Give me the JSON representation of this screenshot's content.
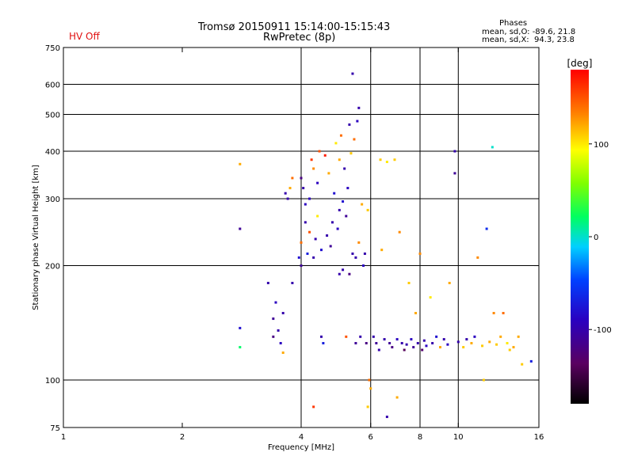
{
  "status": {
    "hv_label": "HV Off",
    "hv_color": "#e01010"
  },
  "header": {
    "title_line1": "Tromsø 20150911 15:14:00-15:15:43",
    "title_line2": "RwPretec (8p)"
  },
  "phase_info": {
    "title": "Phases",
    "o_line": "mean, sd,O: -89.6, 21.8",
    "x_line": "mean, sd,X:  94.3, 23.8"
  },
  "colorbar": {
    "unit_label": "[deg]",
    "min": -180,
    "max": 180,
    "ticks": [
      {
        "value": 100,
        "label": "100"
      },
      {
        "value": 0,
        "label": "0"
      },
      {
        "value": -100,
        "label": "-100"
      }
    ]
  },
  "chart_data": {
    "type": "scatter",
    "xlabel": "Frequency [MHz]",
    "ylabel": "Stationary phase Virtual Height [km]",
    "x_scale": "log",
    "y_scale": "log",
    "xlim": [
      1,
      16
    ],
    "ylim": [
      75,
      750
    ],
    "grid": true,
    "x_ticks": [
      {
        "value": 1,
        "label": "1"
      },
      {
        "value": 2,
        "label": "2"
      },
      {
        "value": 4,
        "label": "4"
      },
      {
        "value": 6,
        "label": "6"
      },
      {
        "value": 8,
        "label": "8"
      },
      {
        "value": 10,
        "label": "10"
      },
      {
        "value": 16,
        "label": "16"
      }
    ],
    "y_ticks": [
      {
        "value": 75,
        "label": "75"
      },
      {
        "value": 100,
        "label": "100"
      },
      {
        "value": 200,
        "label": "200"
      },
      {
        "value": 300,
        "label": "300"
      },
      {
        "value": 400,
        "label": "400"
      },
      {
        "value": 500,
        "label": "500"
      },
      {
        "value": 600,
        "label": "600"
      },
      {
        "value": 750,
        "label": "750"
      }
    ],
    "x_grid": [
      4,
      6,
      8,
      10
    ],
    "y_grid": [
      100,
      200,
      300,
      400,
      500,
      600
    ],
    "points": [
      [
        2.8,
        370,
        120
      ],
      [
        2.8,
        250,
        -110
      ],
      [
        2.8,
        137,
        -80
      ],
      [
        2.8,
        122,
        20
      ],
      [
        3.3,
        180,
        -100
      ],
      [
        3.4,
        145,
        -110
      ],
      [
        3.4,
        130,
        -120
      ],
      [
        3.45,
        160,
        -90
      ],
      [
        3.5,
        135,
        -100
      ],
      [
        3.55,
        125,
        -90
      ],
      [
        3.6,
        118,
        120
      ],
      [
        3.6,
        150,
        -100
      ],
      [
        3.65,
        310,
        -100
      ],
      [
        3.7,
        300,
        -100
      ],
      [
        3.75,
        320,
        120
      ],
      [
        3.8,
        180,
        -100
      ],
      [
        3.8,
        340,
        140
      ],
      [
        3.95,
        210,
        -80
      ],
      [
        4.0,
        200,
        -110
      ],
      [
        4.0,
        230,
        140
      ],
      [
        4.0,
        340,
        -120
      ],
      [
        4.05,
        320,
        -100
      ],
      [
        4.1,
        290,
        -90
      ],
      [
        4.1,
        260,
        -100
      ],
      [
        4.15,
        215,
        -70
      ],
      [
        4.2,
        300,
        -90
      ],
      [
        4.2,
        245,
        150
      ],
      [
        4.25,
        380,
        160
      ],
      [
        4.3,
        360,
        130
      ],
      [
        4.3,
        210,
        -100
      ],
      [
        4.35,
        235,
        -100
      ],
      [
        4.4,
        330,
        -90
      ],
      [
        4.4,
        270,
        100
      ],
      [
        4.45,
        400,
        150
      ],
      [
        4.5,
        220,
        -80
      ],
      [
        4.5,
        130,
        -100
      ],
      [
        4.55,
        125,
        -70
      ],
      [
        4.6,
        390,
        170
      ],
      [
        4.65,
        240,
        -100
      ],
      [
        4.7,
        350,
        120
      ],
      [
        4.75,
        225,
        -110
      ],
      [
        4.8,
        260,
        -100
      ],
      [
        4.85,
        310,
        -80
      ],
      [
        4.9,
        420,
        100
      ],
      [
        4.95,
        250,
        -90
      ],
      [
        5.0,
        280,
        -100
      ],
      [
        5.0,
        190,
        -100
      ],
      [
        5.0,
        380,
        120
      ],
      [
        5.05,
        440,
        140
      ],
      [
        5.1,
        295,
        -80
      ],
      [
        5.1,
        195,
        -100
      ],
      [
        5.15,
        360,
        -100
      ],
      [
        5.2,
        270,
        -110
      ],
      [
        5.2,
        130,
        150
      ],
      [
        5.25,
        320,
        -90
      ],
      [
        5.3,
        190,
        -120
      ],
      [
        5.3,
        470,
        -100
      ],
      [
        5.35,
        395,
        110
      ],
      [
        5.4,
        215,
        -100
      ],
      [
        5.4,
        640,
        -100
      ],
      [
        5.45,
        430,
        140
      ],
      [
        5.5,
        210,
        -100
      ],
      [
        5.5,
        125,
        -110
      ],
      [
        5.55,
        480,
        -90
      ],
      [
        5.6,
        520,
        -100
      ],
      [
        5.6,
        230,
        130
      ],
      [
        5.65,
        130,
        -100
      ],
      [
        5.7,
        290,
        120
      ],
      [
        5.75,
        200,
        -90
      ],
      [
        5.8,
        215,
        -100
      ],
      [
        5.85,
        125,
        -120
      ],
      [
        5.9,
        280,
        110
      ],
      [
        5.95,
        100,
        140
      ],
      [
        6.0,
        95,
        120
      ],
      [
        5.9,
        85,
        110
      ],
      [
        6.1,
        130,
        -100
      ],
      [
        6.2,
        125,
        -110
      ],
      [
        6.3,
        120,
        -100
      ],
      [
        6.35,
        380,
        110
      ],
      [
        6.4,
        220,
        120
      ],
      [
        6.5,
        128,
        -100
      ],
      [
        6.6,
        375,
        100
      ],
      [
        6.7,
        125,
        -110
      ],
      [
        6.8,
        122,
        -120
      ],
      [
        6.9,
        380,
        110
      ],
      [
        7.0,
        128,
        -90
      ],
      [
        7.1,
        245,
        130
      ],
      [
        7.2,
        125,
        -100
      ],
      [
        7.3,
        120,
        -140
      ],
      [
        7.4,
        124,
        -100
      ],
      [
        7.5,
        180,
        110
      ],
      [
        7.6,
        128,
        -90
      ],
      [
        7.7,
        122,
        -110
      ],
      [
        7.8,
        150,
        120
      ],
      [
        7.9,
        125,
        -100
      ],
      [
        8.0,
        215,
        130
      ],
      [
        8.1,
        120,
        -130
      ],
      [
        8.2,
        127,
        -100
      ],
      [
        8.3,
        123,
        -90
      ],
      [
        8.5,
        165,
        100
      ],
      [
        8.6,
        125,
        -100
      ],
      [
        8.8,
        130,
        -80
      ],
      [
        9.0,
        122,
        120
      ],
      [
        9.2,
        128,
        -100
      ],
      [
        9.4,
        124,
        -90
      ],
      [
        9.5,
        180,
        120
      ],
      [
        9.8,
        400,
        -100
      ],
      [
        9.8,
        350,
        -110
      ],
      [
        10.0,
        126,
        -100
      ],
      [
        10.3,
        122,
        110
      ],
      [
        10.5,
        128,
        -100
      ],
      [
        10.8,
        125,
        120
      ],
      [
        11.0,
        130,
        -90
      ],
      [
        11.2,
        210,
        130
      ],
      [
        11.5,
        123,
        110
      ],
      [
        11.8,
        250,
        -60
      ],
      [
        12.0,
        126,
        120
      ],
      [
        12.3,
        150,
        130
      ],
      [
        12.5,
        124,
        110
      ],
      [
        12.8,
        130,
        120
      ],
      [
        13.0,
        150,
        140
      ],
      [
        13.3,
        125,
        100
      ],
      [
        13.5,
        120,
        110
      ],
      [
        13.8,
        122,
        120
      ],
      [
        14.2,
        130,
        120
      ],
      [
        14.5,
        110,
        110
      ],
      [
        15.3,
        112,
        -70
      ],
      [
        12.2,
        410,
        0
      ],
      [
        11.6,
        100,
        110
      ],
      [
        6.6,
        80,
        -100
      ],
      [
        4.3,
        85,
        160
      ],
      [
        7.0,
        90,
        120
      ]
    ]
  }
}
